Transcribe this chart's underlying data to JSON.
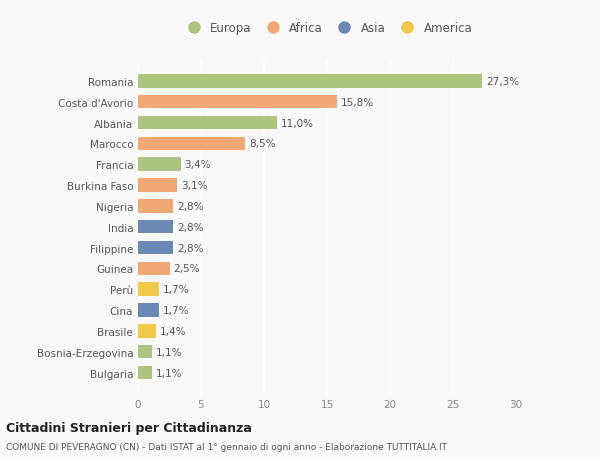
{
  "countries": [
    "Romania",
    "Costa d'Avorio",
    "Albania",
    "Marocco",
    "Francia",
    "Burkina Faso",
    "Nigeria",
    "India",
    "Filippine",
    "Guinea",
    "Perù",
    "Cina",
    "Brasile",
    "Bosnia-Erzegovina",
    "Bulgaria"
  ],
  "values": [
    27.3,
    15.8,
    11.0,
    8.5,
    3.4,
    3.1,
    2.8,
    2.8,
    2.8,
    2.5,
    1.7,
    1.7,
    1.4,
    1.1,
    1.1
  ],
  "labels": [
    "27,3%",
    "15,8%",
    "11,0%",
    "8,5%",
    "3,4%",
    "3,1%",
    "2,8%",
    "2,8%",
    "2,8%",
    "2,5%",
    "1,7%",
    "1,7%",
    "1,4%",
    "1,1%",
    "1,1%"
  ],
  "colors": [
    "#adc47e",
    "#f0a875",
    "#adc47e",
    "#f0a875",
    "#adc47e",
    "#f0a875",
    "#f0a875",
    "#6b89b4",
    "#6b89b4",
    "#f0a875",
    "#f0c84a",
    "#6b89b4",
    "#f0c84a",
    "#adc47e",
    "#adc47e"
  ],
  "legend_labels": [
    "Europa",
    "Africa",
    "Asia",
    "America"
  ],
  "legend_colors": [
    "#adc47e",
    "#f0a875",
    "#6b89b4",
    "#f0c84a"
  ],
  "xlim": [
    0,
    30
  ],
  "xticks": [
    0,
    5,
    10,
    15,
    20,
    25,
    30
  ],
  "title": "Cittadini Stranieri per Cittadinanza",
  "subtitle": "COMUNE DI PEVERAGNO (CN) - Dati ISTAT al 1° gennaio di ogni anno - Elaborazione TUTTITALIA.IT",
  "background_color": "#f9f9f9",
  "grid_color": "#ffffff"
}
